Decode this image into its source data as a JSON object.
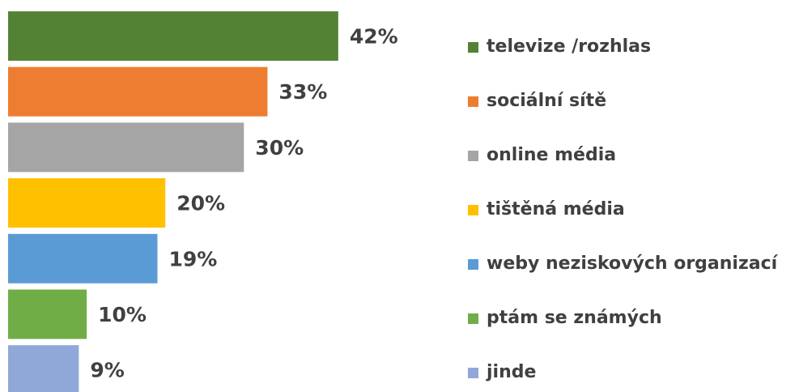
{
  "chart_data": {
    "type": "bar",
    "orientation": "horizontal",
    "categories": [
      "televize /rozhlas",
      "sociální sítě",
      "online média",
      "tištěná média",
      "weby neziskových organizací",
      "ptám se známých",
      "jinde"
    ],
    "values": [
      42,
      33,
      30,
      20,
      19,
      10,
      9
    ],
    "value_labels": [
      "42%",
      "33%",
      "30%",
      "20%",
      "19%",
      "10%",
      "9%"
    ],
    "colors": [
      "#548235",
      "#ed7d31",
      "#a5a5a5",
      "#ffc000",
      "#5b9bd5",
      "#70ad47",
      "#8fa8d8"
    ],
    "legend": "right"
  }
}
